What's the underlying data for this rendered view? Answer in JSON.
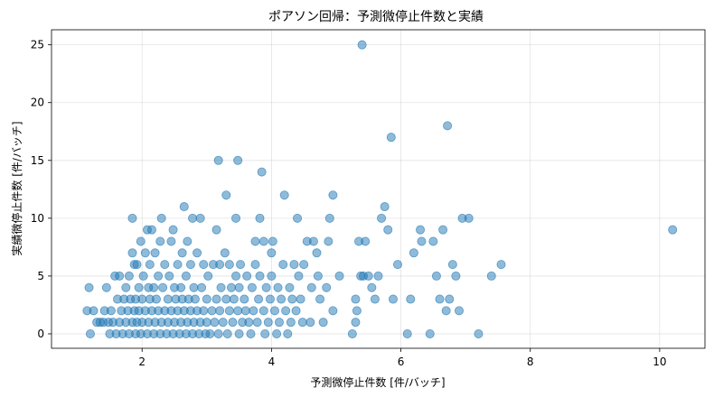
{
  "chart_data": {
    "type": "scatter",
    "title": "ポアソン回帰：予測微停止件数と実績",
    "xlabel": "予測微停止件数 [件/バッチ]",
    "ylabel": "実績微停止件数 [件/バッチ]",
    "xlim": [
      0.6,
      10.7
    ],
    "ylim": [
      -1.25,
      26.3
    ],
    "xticks": [
      2,
      4,
      6,
      8,
      10
    ],
    "yticks": [
      0,
      5,
      10,
      15,
      20,
      25
    ],
    "grid": true,
    "point_color": "#1f77b4",
    "point_alpha": 0.5,
    "points": [
      [
        1.15,
        2
      ],
      [
        1.18,
        4
      ],
      [
        1.2,
        0
      ],
      [
        1.25,
        2
      ],
      [
        1.3,
        1
      ],
      [
        1.35,
        1
      ],
      [
        1.4,
        1
      ],
      [
        1.42,
        2
      ],
      [
        1.45,
        4
      ],
      [
        1.48,
        1
      ],
      [
        1.5,
        0
      ],
      [
        1.52,
        2
      ],
      [
        1.55,
        1
      ],
      [
        1.58,
        5
      ],
      [
        1.6,
        0
      ],
      [
        1.62,
        3
      ],
      [
        1.65,
        1
      ],
      [
        1.65,
        5
      ],
      [
        1.68,
        2
      ],
      [
        1.7,
        0
      ],
      [
        1.72,
        3
      ],
      [
        1.75,
        4
      ],
      [
        1.75,
        1
      ],
      [
        1.78,
        2
      ],
      [
        1.8,
        0
      ],
      [
        1.8,
        5
      ],
      [
        1.82,
        3
      ],
      [
        1.85,
        1
      ],
      [
        1.85,
        7
      ],
      [
        1.85,
        10
      ],
      [
        1.88,
        2
      ],
      [
        1.88,
        6
      ],
      [
        1.9,
        0
      ],
      [
        1.9,
        3
      ],
      [
        1.92,
        1
      ],
      [
        1.92,
        6
      ],
      [
        1.95,
        2
      ],
      [
        1.95,
        4
      ],
      [
        1.98,
        0
      ],
      [
        1.98,
        8
      ],
      [
        2.0,
        1
      ],
      [
        2.0,
        3
      ],
      [
        2.02,
        5
      ],
      [
        2.05,
        2
      ],
      [
        2.05,
        7
      ],
      [
        2.08,
        0
      ],
      [
        2.08,
        9
      ],
      [
        2.1,
        1
      ],
      [
        2.1,
        4
      ],
      [
        2.12,
        3
      ],
      [
        2.12,
        6
      ],
      [
        2.15,
        2
      ],
      [
        2.15,
        9
      ],
      [
        2.18,
        0
      ],
      [
        2.18,
        4
      ],
      [
        2.2,
        1
      ],
      [
        2.2,
        7
      ],
      [
        2.22,
        3
      ],
      [
        2.25,
        2
      ],
      [
        2.25,
        5
      ],
      [
        2.28,
        0
      ],
      [
        2.28,
        8
      ],
      [
        2.3,
        1
      ],
      [
        2.3,
        10
      ],
      [
        2.32,
        4
      ],
      [
        2.35,
        2
      ],
      [
        2.35,
        6
      ],
      [
        2.38,
        0
      ],
      [
        2.4,
        3
      ],
      [
        2.4,
        1
      ],
      [
        2.42,
        5
      ],
      [
        2.45,
        2
      ],
      [
        2.45,
        8
      ],
      [
        2.48,
        0
      ],
      [
        2.48,
        9
      ],
      [
        2.5,
        1
      ],
      [
        2.5,
        4
      ],
      [
        2.52,
        3
      ],
      [
        2.55,
        6
      ],
      [
        2.55,
        2
      ],
      [
        2.58,
        0
      ],
      [
        2.6,
        1
      ],
      [
        2.6,
        4
      ],
      [
        2.62,
        7
      ],
      [
        2.62,
        3
      ],
      [
        2.65,
        2
      ],
      [
        2.65,
        11
      ],
      [
        2.68,
        0
      ],
      [
        2.68,
        5
      ],
      [
        2.7,
        1
      ],
      [
        2.7,
        8
      ],
      [
        2.72,
        3
      ],
      [
        2.75,
        2
      ],
      [
        2.75,
        6
      ],
      [
        2.78,
        0
      ],
      [
        2.78,
        10
      ],
      [
        2.8,
        1
      ],
      [
        2.8,
        4
      ],
      [
        2.82,
        3
      ],
      [
        2.85,
        2
      ],
      [
        2.85,
        7
      ],
      [
        2.88,
        0
      ],
      [
        2.9,
        1
      ],
      [
        2.9,
        10
      ],
      [
        2.92,
        4
      ],
      [
        2.95,
        2
      ],
      [
        2.95,
        6
      ],
      [
        2.98,
        0
      ],
      [
        3.0,
        1
      ],
      [
        3.0,
        3
      ],
      [
        3.02,
        5
      ],
      [
        3.05,
        0
      ],
      [
        3.08,
        2
      ],
      [
        3.1,
        6
      ],
      [
        3.12,
        1
      ],
      [
        3.15,
        9
      ],
      [
        3.15,
        3
      ],
      [
        3.18,
        0
      ],
      [
        3.18,
        15
      ],
      [
        3.2,
        2
      ],
      [
        3.2,
        6
      ],
      [
        3.22,
        4
      ],
      [
        3.25,
        1
      ],
      [
        3.28,
        7
      ],
      [
        3.3,
        3
      ],
      [
        3.3,
        12
      ],
      [
        3.32,
        0
      ],
      [
        3.35,
        2
      ],
      [
        3.35,
        6
      ],
      [
        3.38,
        4
      ],
      [
        3.4,
        1
      ],
      [
        3.42,
        3
      ],
      [
        3.45,
        10
      ],
      [
        3.45,
        5
      ],
      [
        3.48,
        2
      ],
      [
        3.48,
        15
      ],
      [
        3.5,
        0
      ],
      [
        3.5,
        4
      ],
      [
        3.52,
        6
      ],
      [
        3.55,
        1
      ],
      [
        3.58,
        3
      ],
      [
        3.6,
        2
      ],
      [
        3.62,
        5
      ],
      [
        3.65,
        1
      ],
      [
        3.68,
        0
      ],
      [
        3.7,
        4
      ],
      [
        3.72,
        2
      ],
      [
        3.75,
        8
      ],
      [
        3.75,
        6
      ],
      [
        3.78,
        1
      ],
      [
        3.8,
        3
      ],
      [
        3.82,
        10
      ],
      [
        3.82,
        5
      ],
      [
        3.85,
        14
      ],
      [
        3.88,
        2
      ],
      [
        3.88,
        8
      ],
      [
        3.9,
        0
      ],
      [
        3.92,
        4
      ],
      [
        3.95,
        1
      ],
      [
        3.98,
        3
      ],
      [
        4.0,
        7
      ],
      [
        4.0,
        5
      ],
      [
        4.02,
        8
      ],
      [
        4.05,
        2
      ],
      [
        4.08,
        0
      ],
      [
        4.1,
        4
      ],
      [
        4.12,
        1
      ],
      [
        4.15,
        3
      ],
      [
        4.18,
        6
      ],
      [
        4.2,
        12
      ],
      [
        4.22,
        2
      ],
      [
        4.25,
        0
      ],
      [
        4.28,
        4
      ],
      [
        4.3,
        1
      ],
      [
        4.32,
        3
      ],
      [
        4.35,
        6
      ],
      [
        4.38,
        2
      ],
      [
        4.4,
        10
      ],
      [
        4.42,
        5
      ],
      [
        4.45,
        3
      ],
      [
        4.48,
        1
      ],
      [
        4.5,
        6
      ],
      [
        4.55,
        8
      ],
      [
        4.6,
        1
      ],
      [
        4.62,
        4
      ],
      [
        4.65,
        8
      ],
      [
        4.7,
        7
      ],
      [
        4.72,
        5
      ],
      [
        4.75,
        3
      ],
      [
        4.8,
        1
      ],
      [
        4.85,
        4
      ],
      [
        4.88,
        8
      ],
      [
        4.9,
        10
      ],
      [
        4.95,
        12
      ],
      [
        4.95,
        2
      ],
      [
        5.05,
        5
      ],
      [
        5.25,
        0
      ],
      [
        5.3,
        1
      ],
      [
        5.3,
        3
      ],
      [
        5.32,
        2
      ],
      [
        5.35,
        8
      ],
      [
        5.38,
        5
      ],
      [
        5.4,
        25
      ],
      [
        5.42,
        5
      ],
      [
        5.45,
        8
      ],
      [
        5.5,
        5
      ],
      [
        5.55,
        4
      ],
      [
        5.6,
        3
      ],
      [
        5.65,
        5
      ],
      [
        5.7,
        10
      ],
      [
        5.75,
        11
      ],
      [
        5.8,
        9
      ],
      [
        5.85,
        17
      ],
      [
        5.88,
        3
      ],
      [
        5.95,
        6
      ],
      [
        6.1,
        0
      ],
      [
        6.15,
        3
      ],
      [
        6.2,
        7
      ],
      [
        6.3,
        9
      ],
      [
        6.32,
        8
      ],
      [
        6.45,
        0
      ],
      [
        6.5,
        8
      ],
      [
        6.55,
        5
      ],
      [
        6.6,
        3
      ],
      [
        6.65,
        9
      ],
      [
        6.7,
        2
      ],
      [
        6.72,
        18
      ],
      [
        6.75,
        3
      ],
      [
        6.8,
        6
      ],
      [
        6.85,
        5
      ],
      [
        6.9,
        2
      ],
      [
        6.95,
        10
      ],
      [
        7.05,
        10
      ],
      [
        7.2,
        0
      ],
      [
        7.4,
        5
      ],
      [
        7.55,
        6
      ],
      [
        10.2,
        9
      ]
    ]
  }
}
